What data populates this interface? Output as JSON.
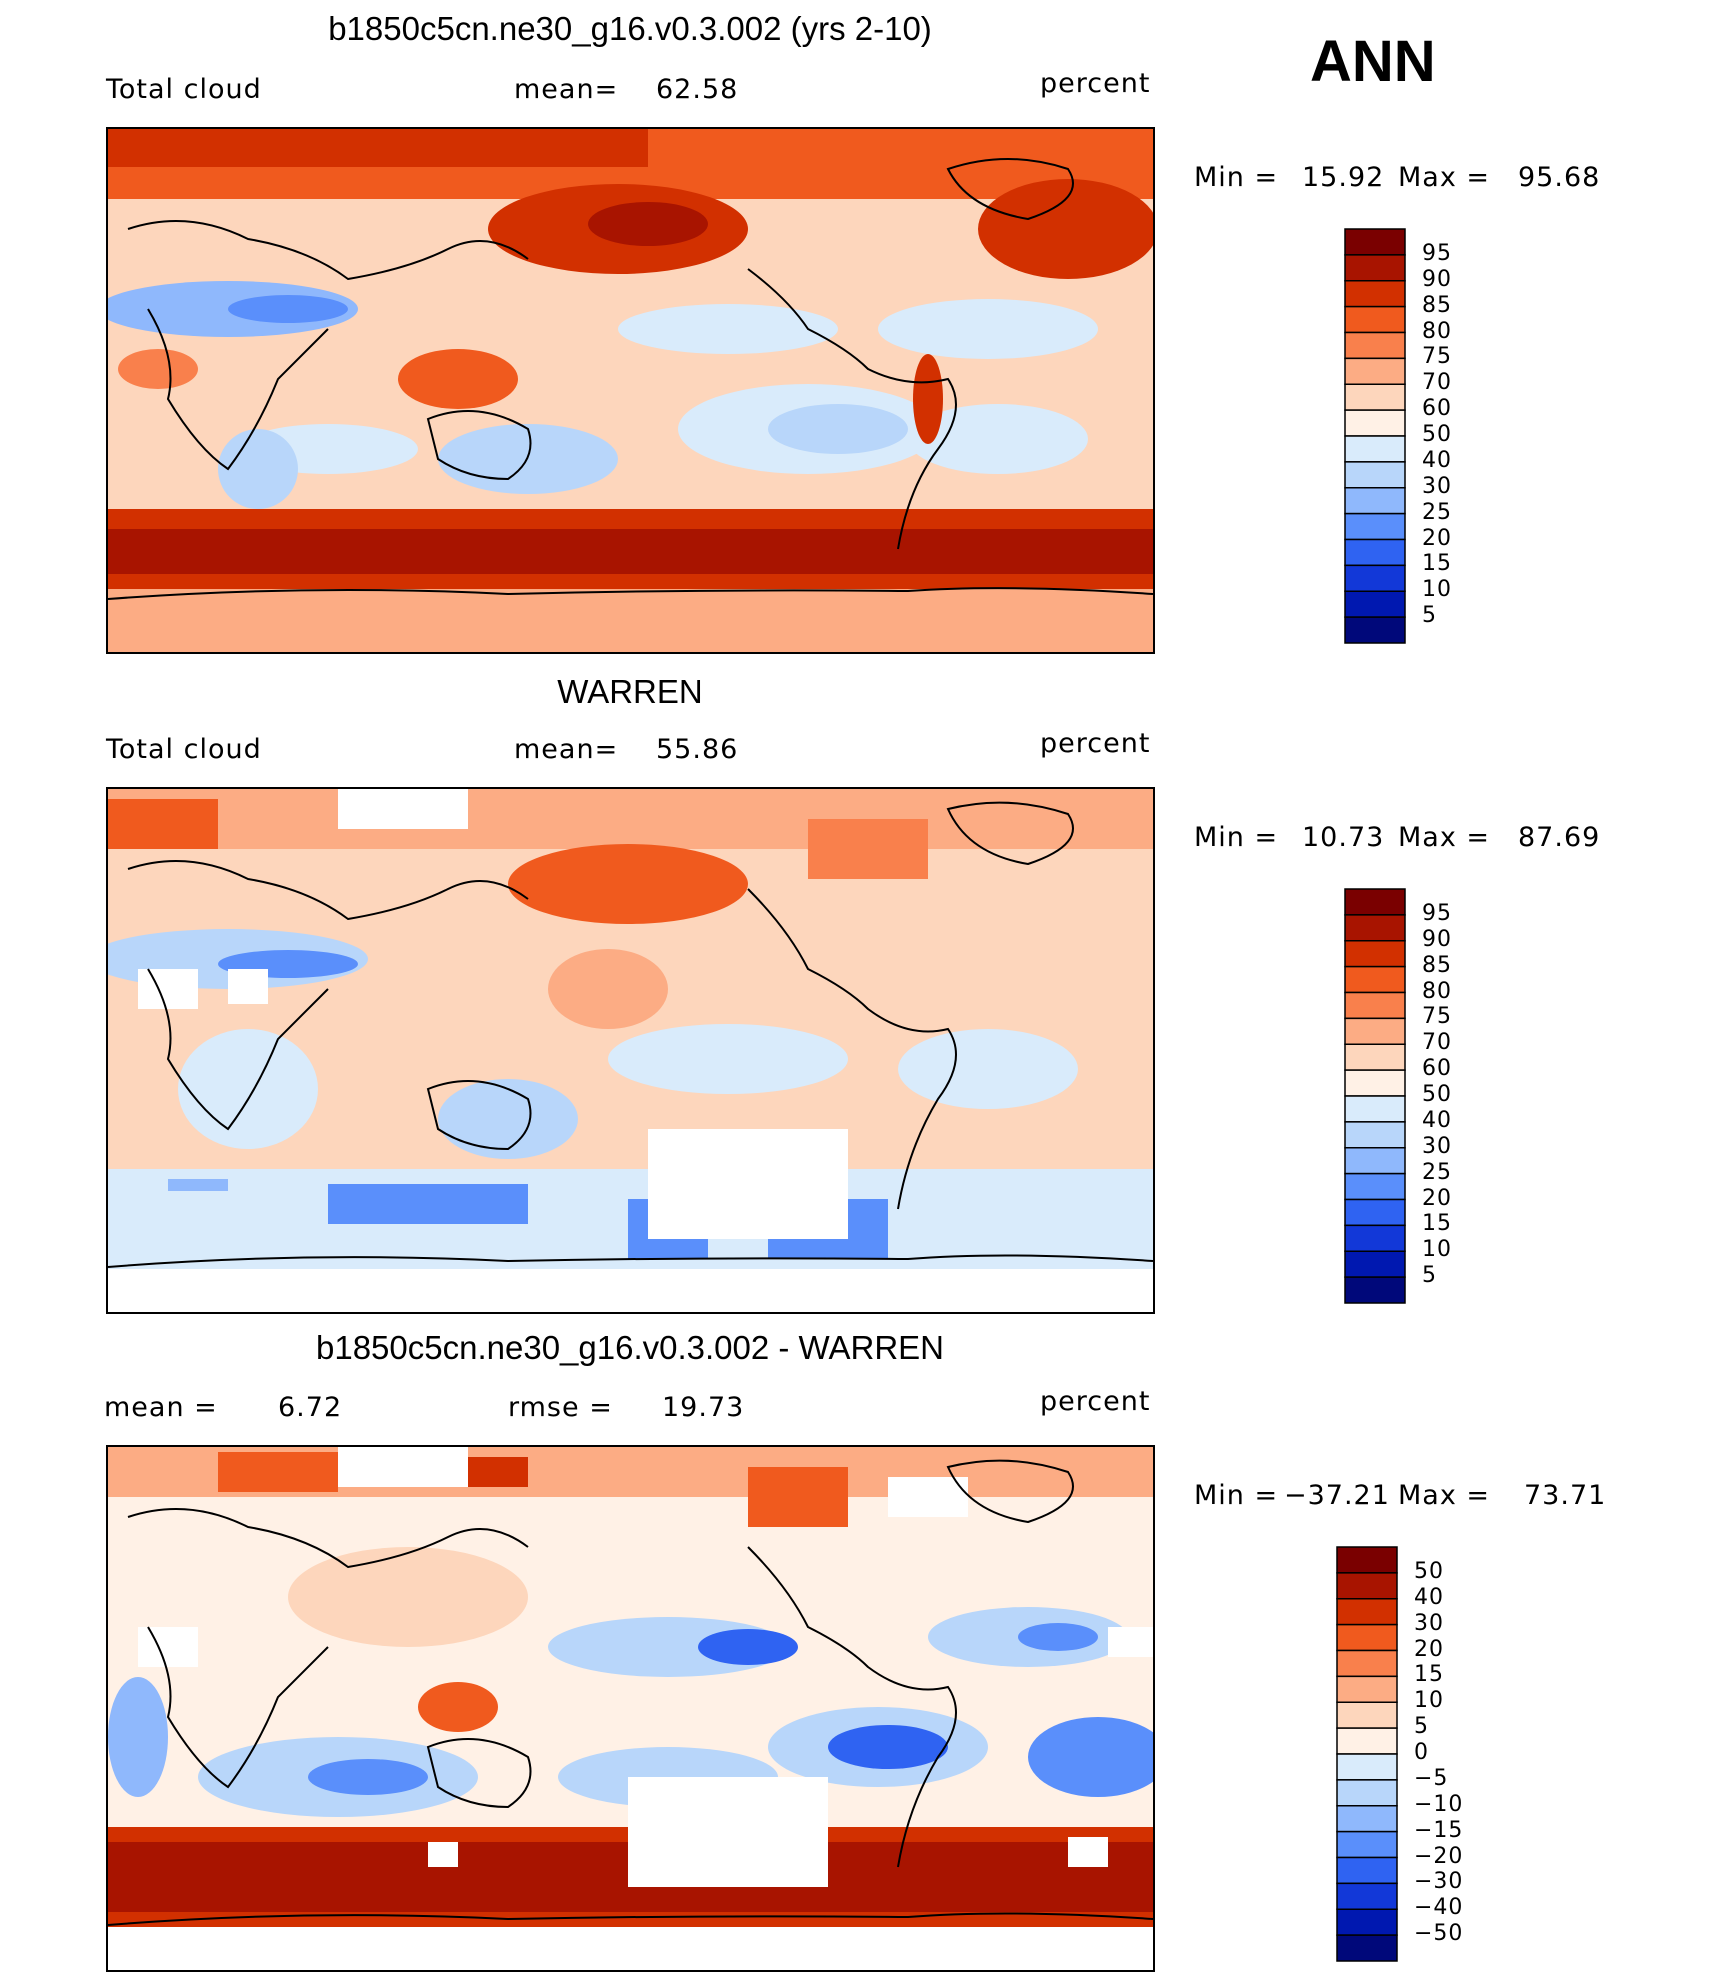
{
  "season": "ANN",
  "panels": [
    {
      "title": "b1850c5cn.ne30_g16.v0.3.002 (yrs 2-10)",
      "left_label": "Total cloud",
      "center_label": "mean=",
      "center_value": "62.58",
      "right_label": "percent",
      "minmax": {
        "min_label": "Min =",
        "min_value": "15.92",
        "max_label": "Max =",
        "max_value": "95.68"
      },
      "colorbar": {
        "labels": [
          "95",
          "90",
          "85",
          "80",
          "75",
          "70",
          "60",
          "50",
          "40",
          "30",
          "25",
          "20",
          "15",
          "10",
          "5"
        ],
        "colors": [
          "#7a0000",
          "#a81400",
          "#d23000",
          "#f05a1e",
          "#f9804c",
          "#fcac84",
          "#fdd6bc",
          "#fff1e6",
          "#d9ebfb",
          "#b8d6fa",
          "#8fb8fc",
          "#5a8ffb",
          "#2f63f2",
          "#1238d8",
          "#0018b0",
          "#00087a"
        ]
      }
    },
    {
      "title": "WARREN",
      "left_label": "Total cloud",
      "center_label": "mean=",
      "center_value": "55.86",
      "right_label": "percent",
      "minmax": {
        "min_label": "Min =",
        "min_value": "10.73",
        "max_label": "Max =",
        "max_value": "87.69"
      },
      "colorbar": {
        "labels": [
          "95",
          "90",
          "85",
          "80",
          "75",
          "70",
          "60",
          "50",
          "40",
          "30",
          "25",
          "20",
          "15",
          "10",
          "5"
        ],
        "colors": [
          "#7a0000",
          "#a81400",
          "#d23000",
          "#f05a1e",
          "#f9804c",
          "#fcac84",
          "#fdd6bc",
          "#fff1e6",
          "#d9ebfb",
          "#b8d6fa",
          "#8fb8fc",
          "#5a8ffb",
          "#2f63f2",
          "#1238d8",
          "#0018b0",
          "#00087a"
        ]
      }
    },
    {
      "title": "b1850c5cn.ne30_g16.v0.3.002 - WARREN",
      "left_label": "mean =",
      "left_value": "6.72",
      "center_label": "rmse =",
      "center_value": "19.73",
      "right_label": "percent",
      "minmax": {
        "min_label": "Min =",
        "min_value": "−37.21",
        "max_label": "Max =",
        "max_value": "73.71"
      },
      "colorbar": {
        "labels": [
          "50",
          "40",
          "30",
          "20",
          "15",
          "10",
          "5",
          "0",
          "−5",
          "−10",
          "−15",
          "−20",
          "−30",
          "−40",
          "−50"
        ],
        "colors": [
          "#7a0000",
          "#a81400",
          "#d23000",
          "#f05a1e",
          "#f9804c",
          "#fcac84",
          "#fdd6bc",
          "#fff1e6",
          "#d9ebfb",
          "#b8d6fa",
          "#8fb8fc",
          "#5a8ffb",
          "#2f63f2",
          "#1238d8",
          "#0018b0",
          "#00087a"
        ]
      }
    }
  ]
}
